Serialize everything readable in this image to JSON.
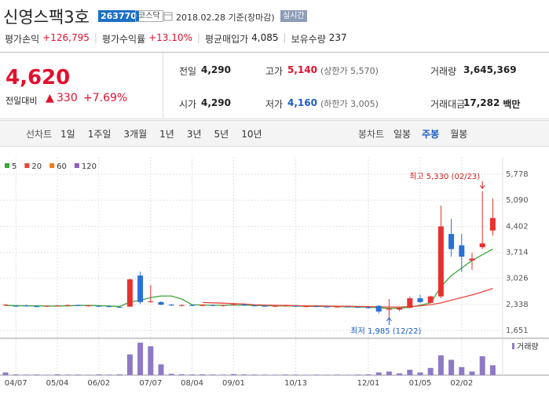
{
  "header": {
    "title": "신영스팩3호",
    "code": "263770",
    "market": "코스닥",
    "date": "2018.02.28 기준(장마감)",
    "realtime": "실시간"
  },
  "summary": [
    {
      "label": "평가손익",
      "value": "+126,795"
    },
    {
      "label": "평가수익률",
      "value": "+13.10%"
    },
    {
      "label": "평균매입가",
      "value": "4,085"
    },
    {
      "label": "보유수량",
      "value": "237"
    }
  ],
  "quote": {
    "price": "4,620",
    "change_label": "전일대비",
    "change": "330",
    "change_pct": "+7.69%",
    "cells": [
      {
        "label": "전일",
        "value": "4,290"
      },
      {
        "label": "고가",
        "value": "5,140",
        "note": "(상한가 5,570)"
      },
      {
        "label": "거래량",
        "value": "3,645,369"
      },
      {
        "label": "시가",
        "value": "4,290"
      },
      {
        "label": "저가",
        "value": "4,160",
        "note": "(하한가 3,005)"
      },
      {
        "label": "거래대금",
        "value": "17,282",
        "unit": "백만"
      }
    ]
  },
  "tabs": {
    "line_label": "선차트",
    "line": [
      "1일",
      "1주일",
      "3개월",
      "1년",
      "3년",
      "5년",
      "10년"
    ],
    "candle_label": "봉차트",
    "candle": [
      "일봉",
      "주봉",
      "월봉"
    ]
  },
  "chart_data": {
    "type": "candlestick",
    "categories": [
      null,
      "04/07",
      null,
      null,
      null,
      "05/04",
      null,
      null,
      null,
      "06/02",
      null,
      null,
      null,
      null,
      "07/07",
      null,
      null,
      null,
      "08/04",
      null,
      null,
      null,
      "09/01",
      null,
      null,
      null,
      null,
      null,
      "10/13",
      null,
      null,
      null,
      null,
      null,
      null,
      "12/01",
      null,
      null,
      null,
      null,
      "01/05",
      null,
      null,
      null,
      "02/02",
      null,
      null,
      null
    ],
    "open": [
      2320,
      2300,
      2310,
      2290,
      2280,
      2300,
      2310,
      2320,
      2300,
      2300,
      2290,
      2270,
      2280,
      3100,
      2400,
      2400,
      2330,
      2300,
      2320,
      2300,
      2320,
      2300,
      2330,
      2340,
      2310,
      2300,
      2290,
      2300,
      2300,
      2280,
      2290,
      2280,
      2270,
      2280,
      2270,
      2260,
      2300,
      2200,
      2200,
      2250,
      2500,
      2380,
      2550,
      4200,
      3900,
      3500,
      3850,
      4290
    ],
    "high": [
      2350,
      2320,
      2330,
      2310,
      2310,
      2320,
      2340,
      2330,
      2320,
      2310,
      2310,
      2290,
      3020,
      3200,
      2850,
      2420,
      2350,
      2340,
      2350,
      2340,
      2340,
      2330,
      2360,
      2350,
      2330,
      2320,
      2310,
      2320,
      2320,
      2300,
      2310,
      2300,
      2290,
      2300,
      2290,
      2280,
      2320,
      2480,
      2270,
      2550,
      2600,
      2570,
      4950,
      4600,
      4200,
      3700,
      5330,
      5140
    ],
    "low": [
      2290,
      2280,
      2290,
      2270,
      2270,
      2290,
      2290,
      2290,
      2280,
      2270,
      2260,
      2250,
      2270,
      2350,
      2380,
      2320,
      2300,
      2280,
      2290,
      2290,
      2290,
      2280,
      2310,
      2300,
      2290,
      2280,
      2270,
      2280,
      2270,
      2260,
      2270,
      2260,
      2250,
      2260,
      2250,
      2230,
      2100,
      1985,
      2160,
      2230,
      2380,
      2360,
      2500,
      3600,
      3200,
      3250,
      3800,
      4160
    ],
    "close": [
      2330,
      2290,
      2300,
      2280,
      2300,
      2310,
      2320,
      2300,
      2310,
      2280,
      2270,
      2260,
      3000,
      2400,
      2420,
      2330,
      2310,
      2320,
      2300,
      2330,
      2300,
      2320,
      2340,
      2310,
      2300,
      2290,
      2300,
      2310,
      2280,
      2290,
      2280,
      2270,
      2280,
      2270,
      2260,
      2240,
      2150,
      2230,
      2250,
      2500,
      2400,
      2550,
      4400,
      3800,
      3600,
      3550,
      3950,
      4620
    ],
    "volume": [
      300000,
      80000,
      60000,
      70000,
      50000,
      90000,
      60000,
      70000,
      50000,
      80000,
      60000,
      90000,
      2300000,
      3600000,
      3200000,
      1200000,
      150000,
      100000,
      80000,
      90000,
      70000,
      60000,
      120000,
      80000,
      70000,
      60000,
      50000,
      70000,
      60000,
      50000,
      60000,
      50000,
      60000,
      50000,
      70000,
      90000,
      300000,
      400000,
      200000,
      600000,
      300000,
      800000,
      2200000,
      1700000,
      900000,
      400000,
      2100000,
      1100000
    ],
    "volume_label": "거래량",
    "volume_lim": [
      0,
      4000000
    ],
    "series": [
      {
        "name": "5",
        "color": "#3aa63a",
        "values": [
          2310,
          2305,
          2300,
          2300,
          2295,
          2295,
          2300,
          2310,
          2310,
          2305,
          2295,
          2285,
          2400,
          2450,
          2520,
          2560,
          2560,
          2480,
          2330,
          2320,
          2315,
          2315,
          2320,
          2320,
          2315,
          2305,
          2300,
          2300,
          2295,
          2290,
          2290,
          2285,
          2280,
          2275,
          2270,
          2265,
          2250,
          2230,
          2240,
          2260,
          2320,
          2380,
          2800,
          3100,
          3300,
          3500,
          3650,
          3800
        ]
      },
      {
        "name": "20",
        "color": "#e8453c",
        "values": [
          null,
          null,
          null,
          null,
          null,
          null,
          null,
          null,
          null,
          null,
          null,
          null,
          null,
          null,
          null,
          null,
          null,
          null,
          null,
          2390,
          2380,
          2370,
          2360,
          2350,
          2330,
          2320,
          2315,
          2310,
          2305,
          2300,
          2300,
          2295,
          2290,
          2290,
          2285,
          2280,
          2275,
          2270,
          2270,
          2280,
          2300,
          2330,
          2380,
          2450,
          2520,
          2590,
          2670,
          2760
        ]
      },
      {
        "name": "60",
        "color": "#f07c1b"
      },
      {
        "name": "120",
        "color": "#8e5cc1"
      }
    ],
    "ylim": [
      1464,
      6234
    ],
    "yticks": [
      {
        "value": 1651,
        "label": "1,651"
      },
      {
        "value": 2338,
        "label": "2,338"
      },
      {
        "value": 3026,
        "label": "3,026"
      },
      {
        "value": 3714,
        "label": "3,714"
      },
      {
        "value": 4402,
        "label": "4,402"
      },
      {
        "value": 5090,
        "label": "5,090"
      },
      {
        "value": 5778,
        "label": "5,778"
      }
    ],
    "grid": true,
    "annotations": {
      "high": "최고 5,330 (02/23)",
      "low": "최저 1,985 (12/22)"
    }
  }
}
